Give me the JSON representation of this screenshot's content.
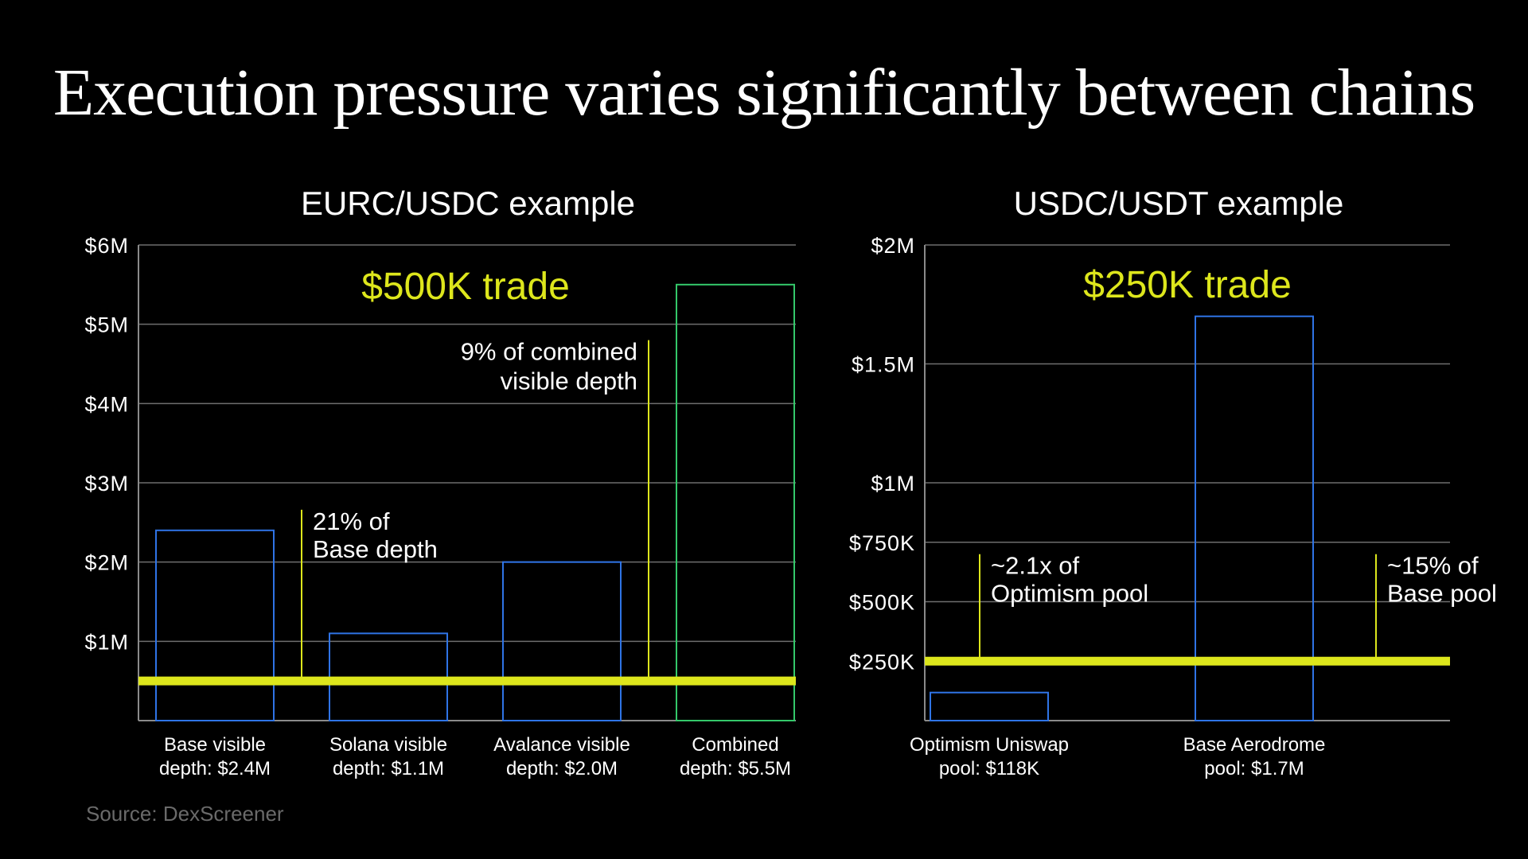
{
  "title": "Execution pressure varies significantly between chains",
  "source": "Source: DexScreener",
  "colors": {
    "background": "#000000",
    "bar_outline": "#2f74e6",
    "combined_outline": "#34c86a",
    "trade_line": "#dde61c",
    "grid": "#6e6e6e",
    "axis": "#8a8a8a",
    "text": "#ffffff",
    "source_text": "#6a6a6a"
  },
  "chart_data": [
    {
      "type": "bar",
      "title": "EURC/USDC example",
      "ylim": [
        0,
        6000000
      ],
      "yticks": [
        {
          "value": 1000000,
          "label": "$1M"
        },
        {
          "value": 2000000,
          "label": "$2M"
        },
        {
          "value": 3000000,
          "label": "$3M"
        },
        {
          "value": 4000000,
          "label": "$4M"
        },
        {
          "value": 5000000,
          "label": "$5M"
        },
        {
          "value": 6000000,
          "label": "$6M"
        }
      ],
      "categories": [
        {
          "line1": "Base visible",
          "line2": "depth: $2.4M"
        },
        {
          "line1": "Solana visible",
          "line2": "depth: $1.1M"
        },
        {
          "line1": "Avalance visible",
          "line2": "depth: $2.0M"
        },
        {
          "line1": "Combined",
          "line2": "depth: $5.5M"
        }
      ],
      "values": [
        2400000,
        1100000,
        2000000,
        5500000
      ],
      "highlight_index": 3,
      "trade": {
        "label": "$500K trade",
        "value": 500000
      },
      "annotations": [
        {
          "line1": "21% of",
          "line2": "Base depth",
          "anchor_between": [
            0,
            1
          ],
          "top_value": 2660000,
          "align": "start"
        },
        {
          "line1": "9% of combined",
          "line2": "visible depth",
          "anchor_between": [
            2,
            3
          ],
          "top_value": 4800000,
          "align": "end"
        }
      ]
    },
    {
      "type": "bar",
      "title": "USDC/USDT example",
      "ylim": [
        0,
        2000000
      ],
      "yticks": [
        {
          "value": 250000,
          "label": "$250K"
        },
        {
          "value": 500000,
          "label": "$500K"
        },
        {
          "value": 750000,
          "label": "$750K"
        },
        {
          "value": 1000000,
          "label": "$1M"
        },
        {
          "value": 1500000,
          "label": "$1.5M"
        },
        {
          "value": 2000000,
          "label": "$2M"
        }
      ],
      "categories": [
        {
          "line1": "Optimism Uniswap",
          "line2": "pool: $118K"
        },
        {
          "line1": "Base Aerodrome",
          "line2": "pool: $1.7M"
        }
      ],
      "values": [
        118000,
        1700000
      ],
      "trade": {
        "label": "$250K trade",
        "value": 250000
      },
      "annotations": [
        {
          "line1": "~2.1x of",
          "line2": "Optimism pool",
          "anchor_index": 0,
          "top_value": 700000,
          "align": "start"
        },
        {
          "line1": "~15% of",
          "line2": "Base pool",
          "anchor_index": 1,
          "top_value": 700000,
          "align": "start"
        }
      ]
    }
  ]
}
